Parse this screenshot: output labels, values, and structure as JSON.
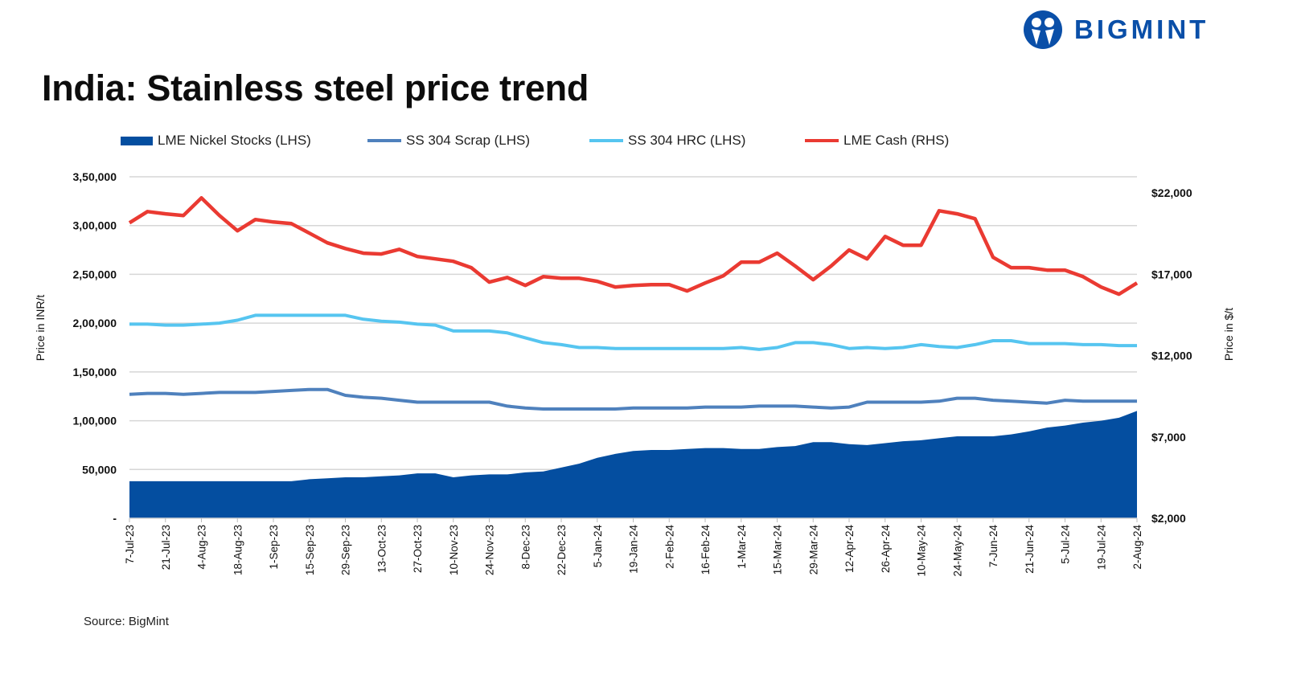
{
  "logo": {
    "text": "BIGMINT",
    "color": "#0a4fa8"
  },
  "title": "India: Stainless steel price trend",
  "source": "Source: BigMint",
  "chart_data": {
    "type": "line",
    "title": "India: Stainless steel price trend",
    "ylabel_left": "Price in INR/t",
    "ylabel_right": "Price in $/t",
    "ylim_left": [
      0,
      350000
    ],
    "ylim_right": [
      2000,
      23000
    ],
    "yticks_left": [
      {
        "v": 0,
        "label": "-"
      },
      {
        "v": 50000,
        "label": "50,000"
      },
      {
        "v": 100000,
        "label": "1,00,000"
      },
      {
        "v": 150000,
        "label": "1,50,000"
      },
      {
        "v": 200000,
        "label": "2,00,000"
      },
      {
        "v": 250000,
        "label": "2,50,000"
      },
      {
        "v": 300000,
        "label": "3,00,000"
      },
      {
        "v": 350000,
        "label": "3,50,000"
      }
    ],
    "yticks_right": [
      {
        "v": 2000,
        "label": "$2,000"
      },
      {
        "v": 7000,
        "label": "$7,000"
      },
      {
        "v": 12000,
        "label": "$12,000"
      },
      {
        "v": 17000,
        "label": "$17,000"
      },
      {
        "v": 22000,
        "label": "$22,000"
      }
    ],
    "grid": true,
    "legend_position": "top",
    "x": [
      "7-Jul-23",
      "14-Jul-23",
      "21-Jul-23",
      "28-Jul-23",
      "4-Aug-23",
      "11-Aug-23",
      "18-Aug-23",
      "25-Aug-23",
      "1-Sep-23",
      "8-Sep-23",
      "15-Sep-23",
      "22-Sep-23",
      "29-Sep-23",
      "6-Oct-23",
      "13-Oct-23",
      "20-Oct-23",
      "27-Oct-23",
      "3-Nov-23",
      "10-Nov-23",
      "17-Nov-23",
      "24-Nov-23",
      "1-Dec-23",
      "8-Dec-23",
      "15-Dec-23",
      "22-Dec-23",
      "29-Dec-23",
      "5-Jan-24",
      "12-Jan-24",
      "19-Jan-24",
      "26-Jan-24",
      "2-Feb-24",
      "9-Feb-24",
      "16-Feb-24",
      "23-Feb-24",
      "1-Mar-24",
      "8-Mar-24",
      "15-Mar-24",
      "22-Mar-24",
      "29-Mar-24",
      "5-Apr-24",
      "12-Apr-24",
      "19-Apr-24",
      "26-Apr-24",
      "3-May-24",
      "10-May-24",
      "17-May-24",
      "24-May-24",
      "31-May-24",
      "7-Jun-24",
      "14-Jun-24",
      "21-Jun-24",
      "28-Jun-24",
      "5-Jul-24",
      "12-Jul-24",
      "19-Jul-24",
      "26-Jul-24",
      "2-Aug-24"
    ],
    "xticks": [
      "7-Jul-23",
      "21-Jul-23",
      "4-Aug-23",
      "18-Aug-23",
      "1-Sep-23",
      "15-Sep-23",
      "29-Sep-23",
      "13-Oct-23",
      "27-Oct-23",
      "10-Nov-23",
      "24-Nov-23",
      "8-Dec-23",
      "22-Dec-23",
      "5-Jan-24",
      "19-Jan-24",
      "2-Feb-24",
      "16-Feb-24",
      "1-Mar-24",
      "15-Mar-24",
      "29-Mar-24",
      "12-Apr-24",
      "26-Apr-24",
      "10-May-24",
      "24-May-24",
      "7-Jun-24",
      "21-Jun-24",
      "5-Jul-24",
      "19-Jul-24",
      "2-Aug-24"
    ],
    "series": [
      {
        "name": "LME Nickel Stocks (LHS)",
        "kind": "area",
        "axis": "left",
        "color": "#044ea0",
        "values": [
          38000,
          38000,
          38000,
          38000,
          38000,
          38000,
          38000,
          38000,
          38000,
          38000,
          40000,
          41000,
          42000,
          42000,
          43000,
          44000,
          46000,
          46000,
          42000,
          44000,
          45000,
          45000,
          47000,
          48000,
          52000,
          56000,
          62000,
          66000,
          69000,
          70000,
          70000,
          71000,
          72000,
          72000,
          71000,
          71000,
          73000,
          74000,
          78000,
          78000,
          76000,
          75000,
          77000,
          79000,
          80000,
          82000,
          84000,
          84000,
          84000,
          86000,
          89000,
          93000,
          95000,
          98000,
          100000,
          103000,
          110000
        ]
      },
      {
        "name": "SS 304 Scrap (LHS)",
        "kind": "line",
        "axis": "left",
        "color": "#4f81bd",
        "values": [
          127000,
          128000,
          128000,
          127000,
          128000,
          129000,
          129000,
          129000,
          130000,
          131000,
          132000,
          132000,
          126000,
          124000,
          123000,
          121000,
          119000,
          119000,
          119000,
          119000,
          119000,
          115000,
          113000,
          112000,
          112000,
          112000,
          112000,
          112000,
          113000,
          113000,
          113000,
          113000,
          114000,
          114000,
          114000,
          115000,
          115000,
          115000,
          114000,
          113000,
          114000,
          119000,
          119000,
          119000,
          119000,
          120000,
          123000,
          123000,
          121000,
          120000,
          119000,
          118000,
          121000,
          120000,
          120000,
          120000,
          120000
        ]
      },
      {
        "name": "SS 304 HRC (LHS)",
        "kind": "line",
        "axis": "left",
        "color": "#56c5f0",
        "values": [
          199000,
          199000,
          198000,
          198000,
          199000,
          200000,
          203000,
          208000,
          208000,
          208000,
          208000,
          208000,
          208000,
          204000,
          202000,
          201000,
          199000,
          198000,
          192000,
          192000,
          192000,
          190000,
          185000,
          180000,
          178000,
          175000,
          175000,
          174000,
          174000,
          174000,
          174000,
          174000,
          174000,
          174000,
          175000,
          173000,
          175000,
          180000,
          180000,
          178000,
          174000,
          175000,
          174000,
          175000,
          178000,
          176000,
          175000,
          178000,
          182000,
          182000,
          179000,
          179000,
          179000,
          178000,
          178000,
          177000,
          177000
        ]
      },
      {
        "name": "LME Cash (RHS)",
        "kind": "line",
        "axis": "right",
        "color": "#ea3a32",
        "values": [
          20170,
          20860,
          20720,
          20620,
          21700,
          20620,
          19680,
          20370,
          20220,
          20120,
          19530,
          18940,
          18590,
          18300,
          18250,
          18540,
          18100,
          17950,
          17800,
          17410,
          16520,
          16810,
          16320,
          16860,
          16760,
          16760,
          16570,
          16220,
          16320,
          16370,
          16370,
          15980,
          16470,
          16910,
          17750,
          17750,
          18300,
          17510,
          16670,
          17510,
          18500,
          17950,
          19330,
          18790,
          18790,
          20910,
          20720,
          20420,
          18050,
          17410,
          17410,
          17260,
          17260,
          16860,
          16220,
          15780,
          16470
        ]
      }
    ]
  }
}
